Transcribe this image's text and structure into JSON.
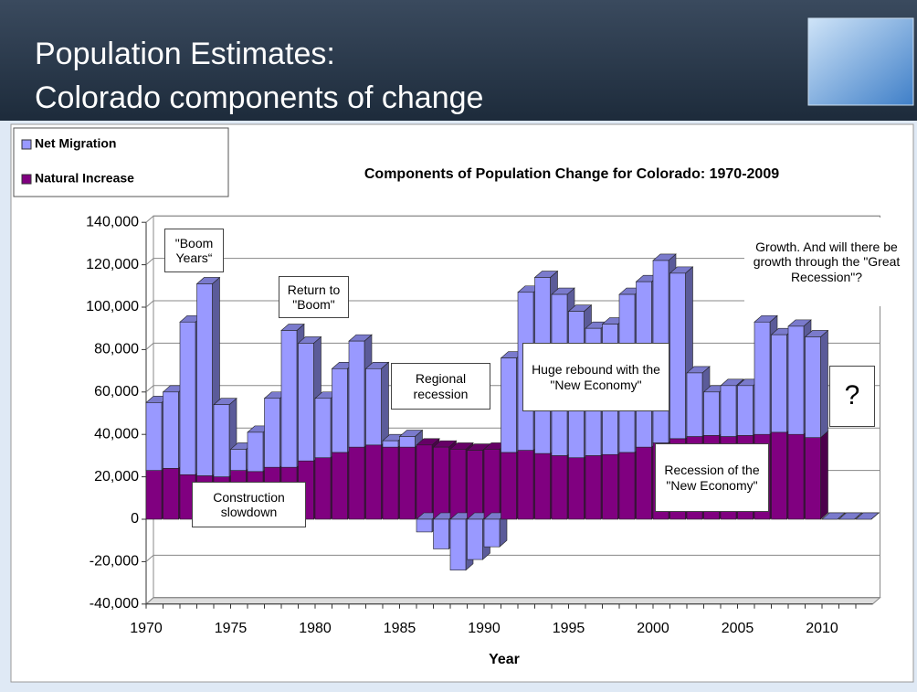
{
  "header": {
    "title_lines": [
      "Population Estimates:",
      "Colorado components of change"
    ]
  },
  "chart_data": {
    "type": "bar3d_stacked",
    "title": "Components of Population Change for Colorado: 1970-2009",
    "x_label": "Year",
    "categories": [
      "1970",
      null,
      null,
      null,
      null,
      "1975",
      null,
      null,
      null,
      null,
      "1980",
      null,
      null,
      null,
      null,
      "1985",
      null,
      null,
      null,
      null,
      "1990",
      null,
      null,
      null,
      null,
      "1995",
      null,
      null,
      null,
      null,
      "2000",
      null,
      null,
      null,
      null,
      "2005",
      null,
      null,
      null,
      null,
      "2010",
      null,
      null
    ],
    "series": [
      {
        "name": "Net Migration",
        "color": "#9999ff",
        "values": [
          32000,
          36000,
          72000,
          90500,
          34000,
          10000,
          18500,
          32500,
          64500,
          55500,
          28000,
          39500,
          50000,
          36000,
          3000,
          5000,
          -6000,
          -14000,
          -24000,
          -19000,
          -13000,
          44500,
          74500,
          83000,
          76000,
          69000,
          60000,
          61500,
          74500,
          78000,
          86000,
          78000,
          30000,
          20500,
          24000,
          23500,
          53000,
          46000,
          51000,
          47500,
          0,
          0,
          0
        ]
      },
      {
        "name": "Natural Increase",
        "color": "#800080",
        "values": [
          23000,
          24000,
          21000,
          20500,
          20000,
          23000,
          22500,
          24500,
          24500,
          27500,
          29000,
          31500,
          34000,
          35000,
          34000,
          34000,
          35000,
          34000,
          33000,
          32500,
          33000,
          31500,
          32500,
          31000,
          30000,
          29000,
          30000,
          30500,
          31500,
          34000,
          36000,
          38000,
          39000,
          39500,
          39000,
          39500,
          40000,
          41000,
          40000,
          38500,
          0,
          0,
          0
        ]
      }
    ],
    "ylim": [
      -40000,
      140000
    ],
    "yticks": [
      {
        "value": -40000,
        "label": "-40,000"
      },
      {
        "value": -20000,
        "label": "-20,000"
      },
      0,
      {
        "value": 20000,
        "label": "20,000"
      },
      {
        "value": 40000,
        "label": "40,000"
      },
      {
        "value": 60000,
        "label": "60,000"
      },
      {
        "value": 80000,
        "label": "80,000"
      },
      {
        "value": 100000,
        "label": "100,000"
      },
      {
        "value": 120000,
        "label": "120,000"
      },
      {
        "value": 140000,
        "label": "140,000"
      }
    ],
    "grid": true,
    "legend": "top-left",
    "annotations": [
      "\"Boom Years“",
      "Return to \"Boom\"",
      "Regional recession",
      "Huge rebound with the \"New Economy\"",
      "Construction slowdown",
      "Recession of the \"New Economy\"",
      "Growth. And will there be growth through the \"Great Recession\"?",
      "?"
    ]
  }
}
